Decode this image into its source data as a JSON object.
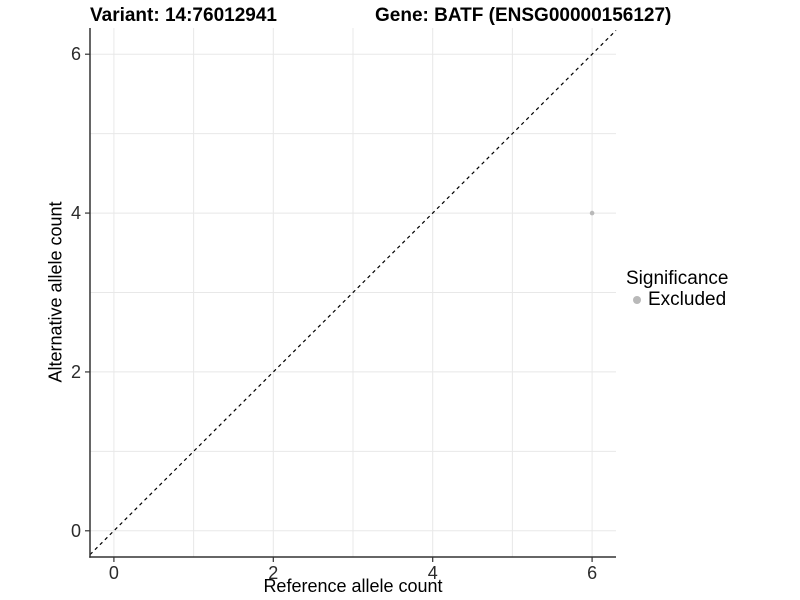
{
  "chart_data": {
    "type": "scatter",
    "title_left": "Variant: 14:76012941",
    "title_right": "Gene: BATF (ENSG00000156127)",
    "xlabel": "Reference allele count",
    "ylabel": "Alternative allele count",
    "xlim": [
      -0.3,
      6.3
    ],
    "ylim": [
      -0.33,
      6.33
    ],
    "x_ticks": [
      0,
      2,
      4,
      6
    ],
    "y_ticks": [
      0,
      2,
      4,
      6
    ],
    "gridlines": {
      "x": [
        0,
        1,
        2,
        3,
        4,
        5,
        6
      ],
      "y": [
        0,
        1,
        2,
        3,
        4,
        5,
        6
      ],
      "visible": true
    },
    "reference_line": {
      "kind": "identity",
      "from": [
        -0.3,
        -0.3
      ],
      "to": [
        6.3,
        6.3
      ],
      "style": "dashed",
      "color": "#000000"
    },
    "series": [
      {
        "name": "Excluded",
        "color": "#b9b9b9",
        "points": [
          {
            "x": 6,
            "y": 4
          }
        ]
      }
    ],
    "legend": {
      "title": "Significance",
      "position": "right",
      "items": [
        {
          "label": "Excluded",
          "color": "#b9b9b9"
        }
      ]
    },
    "colors": {
      "background": "#ffffff",
      "grid": "#e8e8e8",
      "axis_line": "#333333",
      "tick_mark": "#333333",
      "tick_text": "#2b2b2b"
    }
  }
}
